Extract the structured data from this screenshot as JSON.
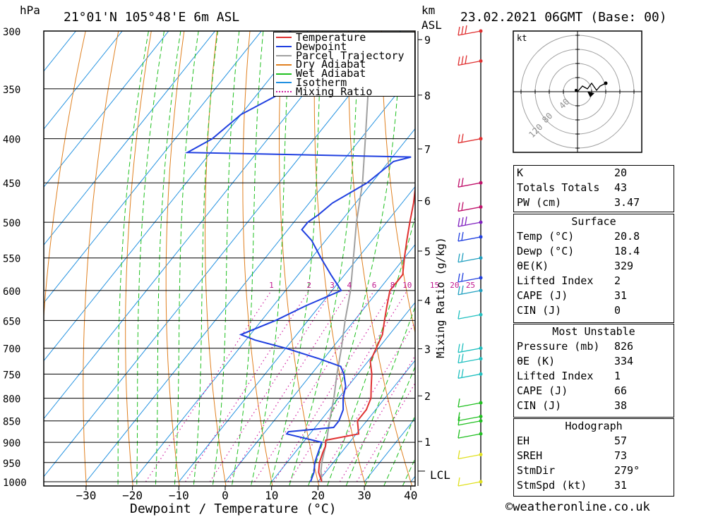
{
  "chart_data": {
    "type": "skew-t log-p",
    "title": "21°01'N 105°48'E 6m ASL",
    "datetime": "23.02.2021 06GMT (Base: 00)",
    "left_axis_unit": "hPa",
    "right_axis_unit_1": "km",
    "right_axis_unit_2": "ASL",
    "xlabel": "Dewpoint / Temperature (°C)",
    "mixing_label": "Mixing Ratio (g/kg)",
    "lcl_label": "LCL",
    "pressure_levels": [
      300,
      350,
      400,
      450,
      500,
      550,
      600,
      650,
      700,
      750,
      800,
      850,
      900,
      950,
      1000
    ],
    "temp_ticks": [
      -30,
      -20,
      -10,
      0,
      10,
      20,
      30,
      40
    ],
    "km_ticks": [
      1,
      2,
      3,
      4,
      5,
      6,
      7,
      8,
      9
    ],
    "mixing_ratio_labels": [
      "1",
      "2",
      "3",
      "4",
      "6",
      "8",
      "10",
      "15",
      "20",
      "25"
    ],
    "legend": [
      {
        "name": "Temperature",
        "color": "#e03030"
      },
      {
        "name": "Dewpoint",
        "color": "#2040e0"
      },
      {
        "name": "Parcel Trajectory",
        "color": "#a0a0a0"
      },
      {
        "name": "Dry Adiabat",
        "color": "#e08020"
      },
      {
        "name": "Wet Adiabat",
        "color": "#20c020"
      },
      {
        "name": "Isotherm",
        "color": "#2090e0"
      },
      {
        "name": "Mixing Ratio",
        "color": "#d020a0"
      }
    ],
    "hodograph_unit": "kt",
    "hodograph_rings": [
      "40",
      "80",
      "120"
    ]
  },
  "indices": {
    "block1": [
      {
        "label": "K",
        "value": "20"
      },
      {
        "label": "Totals Totals",
        "value": "43"
      },
      {
        "label": "PW (cm)",
        "value": "3.47"
      }
    ],
    "surface_title": "Surface",
    "surface": [
      {
        "label": "Temp (°C)",
        "value": "20.8"
      },
      {
        "label": "Dewp (°C)",
        "value": "18.4"
      },
      {
        "label": "θE(K)",
        "value": "329"
      },
      {
        "label": "Lifted Index",
        "value": "2"
      },
      {
        "label": "CAPE (J)",
        "value": "31"
      },
      {
        "label": "CIN (J)",
        "value": "0"
      }
    ],
    "mu_title": "Most Unstable",
    "most_unstable": [
      {
        "label": "Pressure (mb)",
        "value": "826"
      },
      {
        "label": "θE (K)",
        "value": "334"
      },
      {
        "label": "Lifted Index",
        "value": "1"
      },
      {
        "label": "CAPE (J)",
        "value": "66"
      },
      {
        "label": "CIN (J)",
        "value": "38"
      }
    ],
    "hodo_title": "Hodograph",
    "hodograph": [
      {
        "label": "EH",
        "value": "57"
      },
      {
        "label": "SREH",
        "value": "73"
      },
      {
        "label": "StmDir",
        "value": "279°"
      },
      {
        "label": "StmSpd (kt)",
        "value": "31"
      }
    ]
  },
  "footer": "©weatheronline.co.uk"
}
